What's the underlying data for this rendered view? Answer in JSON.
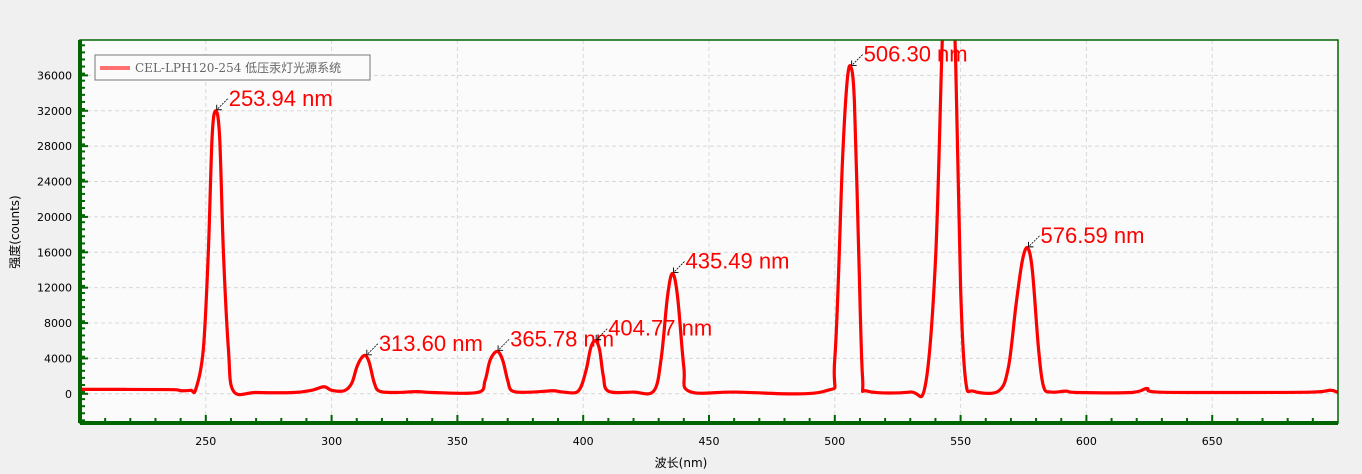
{
  "chart_data": {
    "type": "line",
    "title": "",
    "xlabel": "波长(nm)",
    "ylabel": "强度(counts)",
    "xlim": [
      200,
      700
    ],
    "ylim": [
      -3300,
      40000
    ],
    "xticks": [
      250,
      300,
      350,
      400,
      450,
      500,
      550,
      600,
      650
    ],
    "yticks": [
      0,
      4000,
      8000,
      12000,
      16000,
      20000,
      24000,
      28000,
      32000,
      36000
    ],
    "grid": true,
    "legend": "top-left",
    "colors": {
      "series": "#ff0000",
      "legend_line": "#ff7070",
      "axis": "#006400",
      "plot_bg": "#fbfbfb",
      "grid": "#d8d8d8"
    },
    "series": [
      {
        "name": "CEL-LPH120-254 低压汞灯光源系统",
        "x": [
          200,
          235,
          240,
          244,
          246,
          249,
          251,
          252.5,
          253.94,
          255.5,
          257,
          259,
          261,
          270,
          285,
          292,
          297,
          300,
          305,
          308,
          310,
          312,
          313.6,
          315,
          317,
          319,
          325,
          334,
          340,
          358,
          361,
          363,
          365.78,
          368,
          370,
          372,
          380,
          388,
          392,
          398,
          401,
          403,
          404.77,
          406.5,
          408,
          410,
          420,
          428,
          431,
          433.5,
          435.49,
          437.5,
          440,
          442,
          460,
          496,
          500,
          503,
          504.8,
          506.3,
          507.8,
          509.5,
          511,
          513,
          530,
          536,
          540,
          542.5,
          543.5,
          546.1,
          548,
          550,
          552,
          555,
          565,
          569,
          572,
          574.5,
          576.59,
          578.5,
          581,
          583,
          586,
          592,
          596,
          618,
          624,
          628,
          660,
          690,
          697,
          700
        ],
        "y": [
          500,
          480,
          350,
          400,
          500,
          5000,
          16000,
          29000,
          32000,
          29000,
          16000,
          5000,
          300,
          150,
          150,
          400,
          800,
          400,
          350,
          1200,
          3000,
          4100,
          4300,
          3500,
          1200,
          300,
          150,
          250,
          150,
          150,
          1500,
          3800,
          4800,
          3800,
          1500,
          300,
          200,
          350,
          200,
          300,
          2500,
          5200,
          6000,
          5000,
          2000,
          300,
          200,
          300,
          4000,
          11000,
          13600,
          11000,
          3000,
          300,
          200,
          300,
          4000,
          26000,
          35000,
          37000,
          33000,
          16000,
          2000,
          300,
          200,
          1000,
          15000,
          38000,
          45000,
          48000,
          38000,
          12000,
          1500,
          300,
          300,
          3000,
          10000,
          15000,
          16500,
          14000,
          5000,
          800,
          200,
          300,
          150,
          150,
          600,
          200,
          150,
          200,
          400,
          150
        ]
      }
    ],
    "annotations": [
      {
        "x": 253.94,
        "y": 32000,
        "text": "253.94 nm"
      },
      {
        "x": 313.6,
        "y": 4300,
        "text": "313.60 nm"
      },
      {
        "x": 365.78,
        "y": 4800,
        "text": "365.78 nm"
      },
      {
        "x": 404.77,
        "y": 6000,
        "text": "404.77 nm"
      },
      {
        "x": 435.49,
        "y": 13600,
        "text": "435.49 nm"
      },
      {
        "x": 506.3,
        "y": 37000,
        "text": "506.30 nm"
      },
      {
        "x": 576.59,
        "y": 16500,
        "text": "576.59 nm"
      }
    ]
  }
}
